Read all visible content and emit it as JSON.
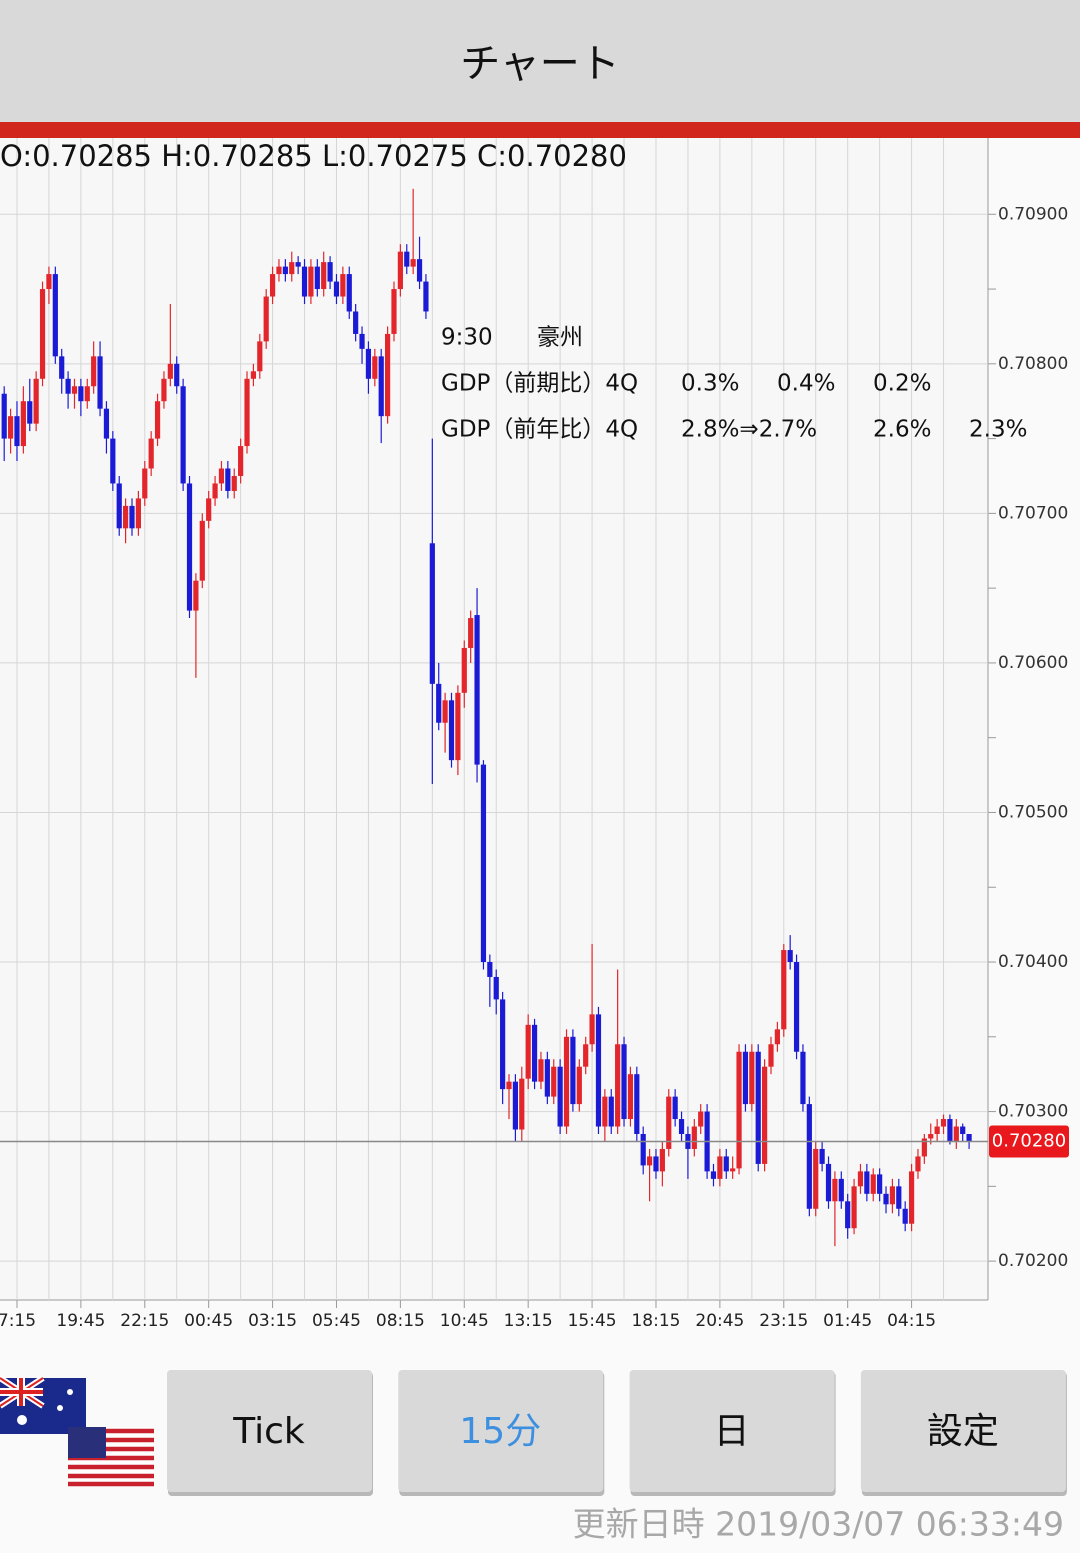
{
  "header": {
    "title": "チャート"
  },
  "chart_data": {
    "type": "candlestick",
    "ohlc_summary": "O:0.70285 H:0.70285 L:0.70275 C:0.70280",
    "up_color": "#e3262b",
    "down_color": "#1b1bd6",
    "grid": true,
    "ylim": [
      0.70174,
      0.70951
    ],
    "yticks": [
      {
        "value": 0.709,
        "label": "0.70900"
      },
      {
        "value": 0.708,
        "label": "0.70800"
      },
      {
        "value": 0.707,
        "label": "0.70700"
      },
      {
        "value": 0.706,
        "label": "0.70600"
      },
      {
        "value": 0.705,
        "label": "0.70500"
      },
      {
        "value": 0.704,
        "label": "0.70400"
      },
      {
        "value": 0.703,
        "label": "0.70300"
      },
      {
        "value": 0.702,
        "label": "0.70200"
      }
    ],
    "y_minor_ticks": [
      0.7085,
      0.7075,
      0.7065,
      0.7055,
      0.7045,
      0.7035,
      0.7025
    ],
    "last_price": {
      "value": 0.7028,
      "label": "0.70280"
    },
    "event": {
      "time": "9:30",
      "country": "豪州",
      "rows": [
        [
          "GDP（前期比）4Q",
          "0.3%",
          "0.4%",
          "0.2%"
        ],
        [
          "GDP（前年比）4Q",
          "2.8%⇒2.7%",
          "2.6%",
          "2.3%"
        ]
      ]
    },
    "categories": [
      null,
      null,
      "7:15",
      null,
      null,
      null,
      null,
      null,
      null,
      null,
      null,
      null,
      "19:45",
      null,
      null,
      null,
      null,
      null,
      null,
      null,
      null,
      null,
      "22:15",
      null,
      null,
      null,
      null,
      null,
      null,
      null,
      null,
      null,
      "00:45",
      null,
      null,
      null,
      null,
      null,
      null,
      null,
      null,
      null,
      "03:15",
      null,
      null,
      null,
      null,
      null,
      null,
      null,
      null,
      null,
      "05:45",
      null,
      null,
      null,
      null,
      null,
      null,
      null,
      null,
      null,
      "08:15",
      null,
      null,
      null,
      null,
      null,
      null,
      null,
      null,
      null,
      "10:45",
      null,
      null,
      null,
      null,
      null,
      null,
      null,
      null,
      null,
      "13:15",
      null,
      null,
      null,
      null,
      null,
      null,
      null,
      null,
      null,
      "15:45",
      null,
      null,
      null,
      null,
      null,
      null,
      null,
      null,
      null,
      "18:15",
      null,
      null,
      null,
      null,
      null,
      null,
      null,
      null,
      null,
      "20:45",
      null,
      null,
      null,
      null,
      null,
      null,
      null,
      null,
      null,
      "23:15",
      null,
      null,
      null,
      null,
      null,
      null,
      null,
      null,
      null,
      "01:45",
      null,
      null,
      null,
      null,
      null,
      null,
      null,
      null,
      null,
      "04:15",
      null,
      null,
      null,
      null,
      null,
      null,
      null,
      null,
      null
    ],
    "ohlc": [
      [
        0.7078,
        0.70785,
        0.70735,
        0.7075
      ],
      [
        0.7075,
        0.7077,
        0.7074,
        0.70765
      ],
      [
        0.70765,
        0.70775,
        0.70735,
        0.70745
      ],
      [
        0.70745,
        0.70785,
        0.7074,
        0.70775
      ],
      [
        0.70775,
        0.7079,
        0.70755,
        0.7076
      ],
      [
        0.7076,
        0.70795,
        0.70755,
        0.7079
      ],
      [
        0.7079,
        0.70855,
        0.70785,
        0.7085
      ],
      [
        0.7085,
        0.70865,
        0.7084,
        0.7086
      ],
      [
        0.7086,
        0.70865,
        0.708,
        0.70805
      ],
      [
        0.70805,
        0.7081,
        0.7078,
        0.7079
      ],
      [
        0.7079,
        0.70795,
        0.7077,
        0.7078
      ],
      [
        0.7078,
        0.7079,
        0.7077,
        0.70785
      ],
      [
        0.70785,
        0.7079,
        0.70765,
        0.70775
      ],
      [
        0.70775,
        0.7079,
        0.7077,
        0.70785
      ],
      [
        0.70785,
        0.70815,
        0.7078,
        0.70805
      ],
      [
        0.70805,
        0.70815,
        0.70765,
        0.7077
      ],
      [
        0.7077,
        0.70775,
        0.7074,
        0.7075
      ],
      [
        0.7075,
        0.70755,
        0.70715,
        0.7072
      ],
      [
        0.7072,
        0.70725,
        0.70685,
        0.7069
      ],
      [
        0.7069,
        0.7071,
        0.7068,
        0.70705
      ],
      [
        0.70705,
        0.7071,
        0.70685,
        0.7069
      ],
      [
        0.7069,
        0.70715,
        0.70685,
        0.7071
      ],
      [
        0.7071,
        0.70735,
        0.70705,
        0.7073
      ],
      [
        0.7073,
        0.70755,
        0.70725,
        0.7075
      ],
      [
        0.7075,
        0.7078,
        0.70745,
        0.70775
      ],
      [
        0.70775,
        0.70795,
        0.7077,
        0.7079
      ],
      [
        0.7079,
        0.7084,
        0.70785,
        0.708
      ],
      [
        0.708,
        0.70805,
        0.7078,
        0.70785
      ],
      [
        0.70785,
        0.7079,
        0.70715,
        0.7072
      ],
      [
        0.7072,
        0.70725,
        0.7063,
        0.70635
      ],
      [
        0.70635,
        0.7066,
        0.7059,
        0.70655
      ],
      [
        0.70655,
        0.707,
        0.7065,
        0.70695
      ],
      [
        0.70695,
        0.70715,
        0.7069,
        0.7071
      ],
      [
        0.7071,
        0.70725,
        0.70705,
        0.7072
      ],
      [
        0.7072,
        0.70735,
        0.70715,
        0.7073
      ],
      [
        0.7073,
        0.70735,
        0.7071,
        0.70715
      ],
      [
        0.70715,
        0.7073,
        0.7071,
        0.70725
      ],
      [
        0.70725,
        0.7075,
        0.7072,
        0.70745
      ],
      [
        0.70745,
        0.70795,
        0.7074,
        0.7079
      ],
      [
        0.7079,
        0.708,
        0.70785,
        0.70795
      ],
      [
        0.70795,
        0.7082,
        0.7079,
        0.70815
      ],
      [
        0.70815,
        0.7085,
        0.7081,
        0.70845
      ],
      [
        0.70845,
        0.70865,
        0.7084,
        0.7086
      ],
      [
        0.7086,
        0.7087,
        0.70855,
        0.70865
      ],
      [
        0.70865,
        0.7087,
        0.70855,
        0.7086
      ],
      [
        0.7086,
        0.70875,
        0.70855,
        0.70868
      ],
      [
        0.70868,
        0.70872,
        0.7086,
        0.70865
      ],
      [
        0.70865,
        0.7087,
        0.7084,
        0.70845
      ],
      [
        0.70845,
        0.7087,
        0.7084,
        0.70865
      ],
      [
        0.70865,
        0.7087,
        0.70845,
        0.7085
      ],
      [
        0.7085,
        0.70875,
        0.70845,
        0.70868
      ],
      [
        0.70868,
        0.70872,
        0.7085,
        0.70855
      ],
      [
        0.70855,
        0.7086,
        0.7084,
        0.70845
      ],
      [
        0.70845,
        0.70865,
        0.7084,
        0.7086
      ],
      [
        0.7086,
        0.70865,
        0.7083,
        0.70835
      ],
      [
        0.70835,
        0.7084,
        0.70815,
        0.7082
      ],
      [
        0.7082,
        0.70825,
        0.708,
        0.7081
      ],
      [
        0.7081,
        0.70815,
        0.7078,
        0.7079
      ],
      [
        0.7079,
        0.7081,
        0.70785,
        0.70805
      ],
      [
        0.70805,
        0.7081,
        0.70747,
        0.70765
      ],
      [
        0.70765,
        0.70825,
        0.7076,
        0.7082
      ],
      [
        0.7082,
        0.70855,
        0.70815,
        0.7085
      ],
      [
        0.7085,
        0.7088,
        0.70845,
        0.70875
      ],
      [
        0.70875,
        0.7088,
        0.7086,
        0.70865
      ],
      [
        0.70865,
        0.70917,
        0.7086,
        0.7087
      ],
      [
        0.7087,
        0.70885,
        0.7085,
        0.70855
      ],
      [
        0.70855,
        0.7086,
        0.7083,
        0.70835
      ],
      [
        0.7068,
        0.7075,
        0.70519,
        0.70586
      ],
      [
        0.70586,
        0.706,
        0.70555,
        0.7056
      ],
      [
        0.7056,
        0.7058,
        0.7054,
        0.70575
      ],
      [
        0.70575,
        0.7058,
        0.7053,
        0.70535
      ],
      [
        0.70535,
        0.70585,
        0.70525,
        0.7058
      ],
      [
        0.7058,
        0.70615,
        0.7057,
        0.7061
      ],
      [
        0.7061,
        0.70635,
        0.706,
        0.7063
      ],
      [
        0.70632,
        0.7065,
        0.7052,
        0.70532
      ],
      [
        0.70532,
        0.70535,
        0.70395,
        0.704
      ],
      [
        0.704,
        0.70405,
        0.7037,
        0.7039
      ],
      [
        0.7039,
        0.70395,
        0.70365,
        0.70375
      ],
      [
        0.70375,
        0.7038,
        0.70305,
        0.70315
      ],
      [
        0.70315,
        0.70325,
        0.70295,
        0.7032
      ],
      [
        0.7032,
        0.70325,
        0.7028,
        0.70288
      ],
      [
        0.70288,
        0.7033,
        0.7028,
        0.70322
      ],
      [
        0.70322,
        0.70365,
        0.70315,
        0.70358
      ],
      [
        0.70358,
        0.70362,
        0.70315,
        0.7032
      ],
      [
        0.7032,
        0.7034,
        0.70315,
        0.70335
      ],
      [
        0.70335,
        0.7034,
        0.70305,
        0.7031
      ],
      [
        0.7031,
        0.70335,
        0.70305,
        0.7033
      ],
      [
        0.7033,
        0.70335,
        0.70285,
        0.7029
      ],
      [
        0.7029,
        0.70355,
        0.70285,
        0.7035
      ],
      [
        0.7035,
        0.70355,
        0.703,
        0.70305
      ],
      [
        0.70305,
        0.70335,
        0.703,
        0.7033
      ],
      [
        0.7033,
        0.7035,
        0.70325,
        0.70345
      ],
      [
        0.70345,
        0.70412,
        0.7034,
        0.70365
      ],
      [
        0.70365,
        0.7037,
        0.70285,
        0.7029
      ],
      [
        0.7029,
        0.70315,
        0.7028,
        0.7031
      ],
      [
        0.7031,
        0.70315,
        0.70285,
        0.7029
      ],
      [
        0.7029,
        0.70395,
        0.70285,
        0.70345
      ],
      [
        0.70345,
        0.7035,
        0.7029,
        0.70295
      ],
      [
        0.70295,
        0.7033,
        0.7029,
        0.70325
      ],
      [
        0.70325,
        0.7033,
        0.7028,
        0.70285
      ],
      [
        0.70285,
        0.7029,
        0.70258,
        0.70264
      ],
      [
        0.70264,
        0.70275,
        0.7024,
        0.7027
      ],
      [
        0.7027,
        0.70275,
        0.70255,
        0.7026
      ],
      [
        0.7026,
        0.7028,
        0.7025,
        0.70275
      ],
      [
        0.70275,
        0.70315,
        0.7027,
        0.7031
      ],
      [
        0.7031,
        0.70315,
        0.7029,
        0.70295
      ],
      [
        0.70295,
        0.703,
        0.7028,
        0.70285
      ],
      [
        0.70285,
        0.7029,
        0.70255,
        0.70275
      ],
      [
        0.70275,
        0.70295,
        0.7027,
        0.7029
      ],
      [
        0.7029,
        0.70305,
        0.70285,
        0.703
      ],
      [
        0.703,
        0.70305,
        0.70255,
        0.7026
      ],
      [
        0.7026,
        0.70265,
        0.7025,
        0.70255
      ],
      [
        0.70255,
        0.70275,
        0.7025,
        0.7027
      ],
      [
        0.7027,
        0.70275,
        0.70255,
        0.7026
      ],
      [
        0.7026,
        0.7027,
        0.70255,
        0.70262
      ],
      [
        0.70262,
        0.70345,
        0.70258,
        0.7034
      ],
      [
        0.7034,
        0.70345,
        0.703,
        0.70305
      ],
      [
        0.70305,
        0.70345,
        0.703,
        0.7034
      ],
      [
        0.7034,
        0.70345,
        0.7026,
        0.70265
      ],
      [
        0.70265,
        0.70335,
        0.7026,
        0.7033
      ],
      [
        0.7033,
        0.7035,
        0.70325,
        0.70345
      ],
      [
        0.70345,
        0.7036,
        0.7034,
        0.70355
      ],
      [
        0.70355,
        0.70412,
        0.7035,
        0.70408
      ],
      [
        0.70408,
        0.70418,
        0.70395,
        0.704
      ],
      [
        0.704,
        0.70405,
        0.70335,
        0.7034
      ],
      [
        0.7034,
        0.70345,
        0.703,
        0.70305
      ],
      [
        0.70305,
        0.7031,
        0.7023,
        0.70235
      ],
      [
        0.70235,
        0.7028,
        0.7023,
        0.70275
      ],
      [
        0.70275,
        0.7028,
        0.7026,
        0.70265
      ],
      [
        0.70265,
        0.7027,
        0.70235,
        0.7024
      ],
      [
        0.7024,
        0.7026,
        0.7021,
        0.70255
      ],
      [
        0.70255,
        0.7026,
        0.70235,
        0.7024
      ],
      [
        0.7024,
        0.70245,
        0.70215,
        0.70222
      ],
      [
        0.70222,
        0.70255,
        0.70218,
        0.7025
      ],
      [
        0.7025,
        0.70265,
        0.70245,
        0.7026
      ],
      [
        0.7026,
        0.70265,
        0.7024,
        0.70245
      ],
      [
        0.70245,
        0.70262,
        0.7024,
        0.70258
      ],
      [
        0.70258,
        0.70262,
        0.7024,
        0.70245
      ],
      [
        0.70245,
        0.7025,
        0.70232,
        0.70238
      ],
      [
        0.70238,
        0.70255,
        0.70232,
        0.7025
      ],
      [
        0.7025,
        0.70255,
        0.7023,
        0.70235
      ],
      [
        0.70235,
        0.7024,
        0.7022,
        0.70225
      ],
      [
        0.70225,
        0.70265,
        0.7022,
        0.7026
      ],
      [
        0.7026,
        0.70275,
        0.70255,
        0.7027
      ],
      [
        0.7027,
        0.70285,
        0.70265,
        0.70282
      ],
      [
        0.70282,
        0.70292,
        0.70278,
        0.70285
      ],
      [
        0.70285,
        0.70295,
        0.7028,
        0.7029
      ],
      [
        0.7029,
        0.70298,
        0.70285,
        0.70295
      ],
      [
        0.70295,
        0.70298,
        0.70278,
        0.7028
      ],
      [
        0.7028,
        0.70295,
        0.70275,
        0.7029
      ],
      [
        0.7029,
        0.70292,
        0.7028,
        0.70285
      ],
      [
        0.70285,
        0.70285,
        0.70275,
        0.7028
      ]
    ]
  },
  "buttons": [
    "Tick",
    "15分",
    "日",
    "設定"
  ],
  "footer": {
    "updated": "更新日時 2019/03/07 06:33:49"
  }
}
